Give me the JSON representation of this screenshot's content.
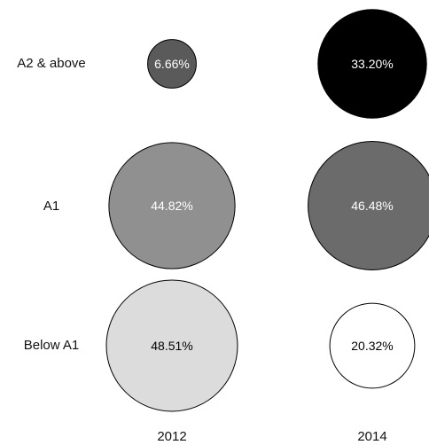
{
  "chart_data": {
    "type": "bubble",
    "rows": [
      "A2 & above",
      "A1",
      "Below A1"
    ],
    "columns": [
      "2012",
      "2014"
    ],
    "series": [
      {
        "name": "2012",
        "values": [
          6.66,
          44.82,
          48.51
        ],
        "labels": [
          "6.66%",
          "44.82%",
          "48.51%"
        ],
        "colors": [
          "#5a5a5a",
          "#909090",
          "#dcdcdc"
        ]
      },
      {
        "name": "2014",
        "values": [
          33.2,
          46.48,
          20.32
        ],
        "labels": [
          "33.20%",
          "46.48%",
          "20.32%"
        ],
        "colors": [
          "#000000",
          "#6b6b6b",
          "#ffffff"
        ]
      }
    ],
    "label_colors": {
      "dark": "#ffffff",
      "light": "#000000"
    },
    "grid": false,
    "legend": "none"
  }
}
